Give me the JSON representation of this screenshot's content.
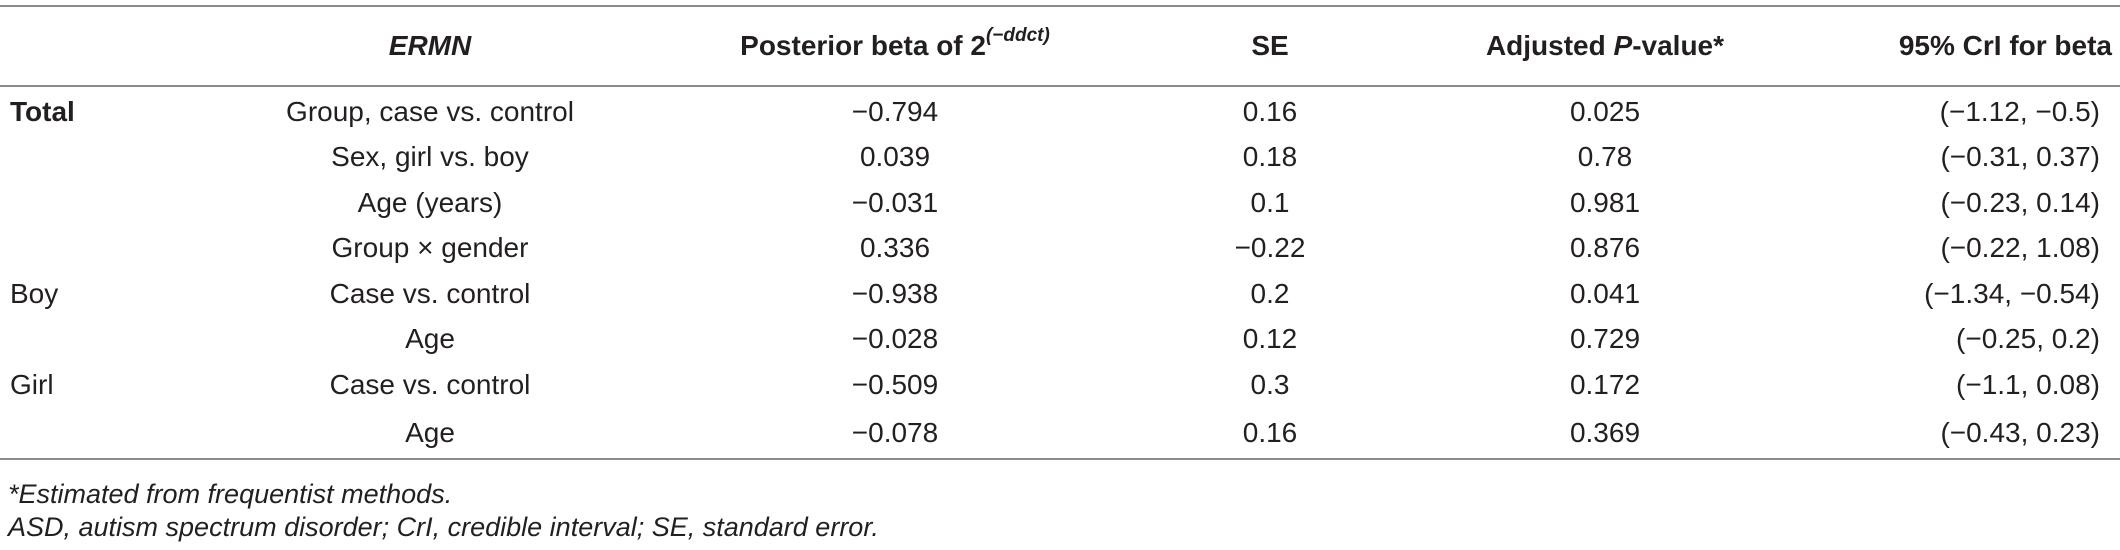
{
  "table": {
    "headers": {
      "label": "",
      "variable": "ERMN",
      "beta_main": "Posterior beta of 2",
      "beta_sup": "(−ddct)",
      "se": "SE",
      "p_pre": "Adjusted ",
      "p_italic": "P",
      "p_post": "-value*",
      "cri": "95% CrI for beta"
    },
    "rows": [
      {
        "group": "Total",
        "variable": "Group, case vs. control",
        "beta": "−0.794",
        "se": "0.16",
        "p": "0.025",
        "cri": "(−1.12, −0.5)"
      },
      {
        "group": "",
        "variable": "Sex, girl vs. boy",
        "beta": "0.039",
        "se": "0.18",
        "p": "0.78",
        "cri": "(−0.31, 0.37)"
      },
      {
        "group": "",
        "variable": "Age (years)",
        "beta": "−0.031",
        "se": "0.1",
        "p": "0.981",
        "cri": "(−0.23, 0.14)"
      },
      {
        "group": "",
        "variable": "Group × gender",
        "beta": "0.336",
        "se": "−0.22",
        "p": "0.876",
        "cri": "(−0.22, 1.08)"
      },
      {
        "group": "Boy",
        "variable": "Case vs. control",
        "beta": "−0.938",
        "se": "0.2",
        "p": "0.041",
        "cri": "(−1.34, −0.54)"
      },
      {
        "group": "",
        "variable": "Age",
        "beta": "−0.028",
        "se": "0.12",
        "p": "0.729",
        "cri": "(−0.25, 0.2)"
      },
      {
        "group": "Girl",
        "variable": "Case vs. control",
        "beta": "−0.509",
        "se": "0.3",
        "p": "0.172",
        "cri": "(−1.1, 0.08)"
      },
      {
        "group": "",
        "variable": "Age",
        "beta": "−0.078",
        "se": "0.16",
        "p": "0.369",
        "cri": "(−0.43, 0.23)"
      }
    ]
  },
  "footnotes": {
    "note1": "*Estimated from frequentist methods.",
    "note2": "ASD, autism spectrum disorder; CrI, credible interval; SE, standard error."
  }
}
